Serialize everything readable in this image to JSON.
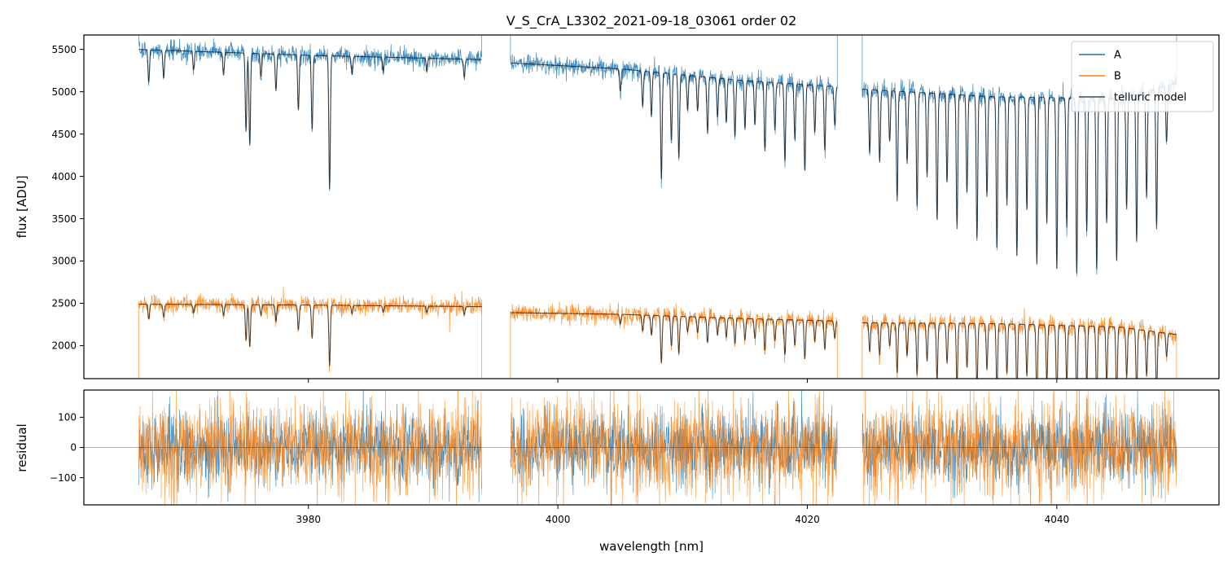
{
  "chart_data": {
    "type": "line",
    "title": "V_S_CrA_L3302_2021-09-18_03061  order 02",
    "xlabel": "wavelength [nm]",
    "xlim": [
      3962,
      4053
    ],
    "x_ticks": [
      3980,
      4000,
      4020,
      4040
    ],
    "x_tick_labels": [
      "3980",
      "4000",
      "4020",
      "4040"
    ],
    "segments": [
      {
        "x_start": 3966.4,
        "x_end": 3993.9
      },
      {
        "x_start": 3996.2,
        "x_end": 4022.4
      },
      {
        "x_start": 4024.4,
        "x_end": 4049.6
      }
    ],
    "colors": {
      "A": "#1f77b4",
      "B": "#ff7f0e",
      "model": "#000000"
    },
    "panels": [
      {
        "name": "flux",
        "ylabel": "flux [ADU]",
        "ylim": [
          1610,
          5670
        ],
        "y_ticks": [
          2000,
          2500,
          3000,
          3500,
          4000,
          4500,
          5000,
          5500
        ],
        "y_tick_labels": [
          "2000",
          "2500",
          "3000",
          "3500",
          "4000",
          "4500",
          "5000",
          "5500"
        ],
        "series": [
          {
            "name": "A",
            "continuum": [
              [
                3966.4,
                5500
              ],
              [
                3980,
                5430
              ],
              [
                3993.9,
                5380
              ],
              [
                3996.2,
                5340
              ],
              [
                4005,
                5270
              ],
              [
                4015,
                5130
              ],
              [
                4022.4,
                5060
              ],
              [
                4024.4,
                5030
              ],
              [
                4035,
                4940
              ],
              [
                4045,
                4920
              ],
              [
                4049.6,
                5100
              ]
            ],
            "noise": 55
          },
          {
            "name": "B",
            "continuum": [
              [
                3966.4,
                2490
              ],
              [
                3980,
                2480
              ],
              [
                3993.9,
                2460
              ],
              [
                3996.2,
                2390
              ],
              [
                4005,
                2370
              ],
              [
                4015,
                2320
              ],
              [
                4022.4,
                2290
              ],
              [
                4024.4,
                2270
              ],
              [
                4035,
                2260
              ],
              [
                4045,
                2220
              ],
              [
                4049.6,
                2130
              ]
            ],
            "noise": 50
          },
          {
            "name": "telluric model",
            "of": [
              "A",
              "B"
            ]
          }
        ],
        "absorption_lines": [
          {
            "x": 3967.2,
            "depth": 0.07
          },
          {
            "x": 3968.4,
            "depth": 0.06
          },
          {
            "x": 3970.8,
            "depth": 0.04
          },
          {
            "x": 3973.2,
            "depth": 0.05
          },
          {
            "x": 3975.0,
            "depth": 0.17
          },
          {
            "x": 3975.3,
            "depth": 0.2
          },
          {
            "x": 3976.2,
            "depth": 0.05
          },
          {
            "x": 3977.4,
            "depth": 0.08
          },
          {
            "x": 3979.2,
            "depth": 0.12
          },
          {
            "x": 3980.3,
            "depth": 0.16
          },
          {
            "x": 3981.7,
            "depth": 0.29
          },
          {
            "x": 3983.5,
            "depth": 0.04
          },
          {
            "x": 3986.0,
            "depth": 0.03
          },
          {
            "x": 3989.5,
            "depth": 0.03
          },
          {
            "x": 3992.5,
            "depth": 0.04
          },
          {
            "x": 4005.0,
            "depth": 0.05
          },
          {
            "x": 4006.8,
            "depth": 0.08
          },
          {
            "x": 4007.5,
            "depth": 0.1
          },
          {
            "x": 4008.3,
            "depth": 0.24
          },
          {
            "x": 4009.1,
            "depth": 0.15
          },
          {
            "x": 4009.7,
            "depth": 0.19
          },
          {
            "x": 4010.4,
            "depth": 0.08
          },
          {
            "x": 4011.2,
            "depth": 0.08
          },
          {
            "x": 4012.0,
            "depth": 0.13
          },
          {
            "x": 4012.8,
            "depth": 0.09
          },
          {
            "x": 4013.5,
            "depth": 0.1
          },
          {
            "x": 4014.2,
            "depth": 0.13
          },
          {
            "x": 4015.0,
            "depth": 0.11
          },
          {
            "x": 4015.8,
            "depth": 0.1
          },
          {
            "x": 4016.6,
            "depth": 0.16
          },
          {
            "x": 4017.4,
            "depth": 0.11
          },
          {
            "x": 4018.2,
            "depth": 0.18
          },
          {
            "x": 4019.0,
            "depth": 0.13
          },
          {
            "x": 4019.8,
            "depth": 0.2
          },
          {
            "x": 4020.6,
            "depth": 0.11
          },
          {
            "x": 4021.4,
            "depth": 0.15
          },
          {
            "x": 4022.2,
            "depth": 0.09
          },
          {
            "x": 4025.0,
            "depth": 0.15
          },
          {
            "x": 4025.8,
            "depth": 0.17
          },
          {
            "x": 4026.6,
            "depth": 0.12
          },
          {
            "x": 4027.2,
            "depth": 0.26
          },
          {
            "x": 4028.0,
            "depth": 0.17
          },
          {
            "x": 4028.8,
            "depth": 0.27
          },
          {
            "x": 4029.6,
            "depth": 0.2
          },
          {
            "x": 4030.4,
            "depth": 0.3
          },
          {
            "x": 4031.2,
            "depth": 0.21
          },
          {
            "x": 4032.0,
            "depth": 0.32
          },
          {
            "x": 4032.8,
            "depth": 0.23
          },
          {
            "x": 4033.6,
            "depth": 0.34
          },
          {
            "x": 4034.4,
            "depth": 0.24
          },
          {
            "x": 4035.2,
            "depth": 0.36
          },
          {
            "x": 4036.0,
            "depth": 0.26
          },
          {
            "x": 4036.8,
            "depth": 0.38
          },
          {
            "x": 4037.6,
            "depth": 0.27
          },
          {
            "x": 4038.4,
            "depth": 0.4
          },
          {
            "x": 4039.2,
            "depth": 0.3
          },
          {
            "x": 4040.0,
            "depth": 0.41
          },
          {
            "x": 4040.8,
            "depth": 0.31
          },
          {
            "x": 4041.6,
            "depth": 0.42
          },
          {
            "x": 4042.4,
            "depth": 0.32
          },
          {
            "x": 4043.2,
            "depth": 0.41
          },
          {
            "x": 4044.0,
            "depth": 0.3
          },
          {
            "x": 4044.8,
            "depth": 0.39
          },
          {
            "x": 4045.6,
            "depth": 0.27
          },
          {
            "x": 4046.4,
            "depth": 0.35
          },
          {
            "x": 4047.2,
            "depth": 0.25
          },
          {
            "x": 4048.0,
            "depth": 0.33
          },
          {
            "x": 4048.8,
            "depth": 0.13
          }
        ],
        "legend": {
          "position": "top-right",
          "entries": [
            "A",
            "B",
            "telluric model"
          ]
        }
      },
      {
        "name": "residual",
        "ylabel": "residual",
        "ylim": [
          -190,
          190
        ],
        "y_ticks": [
          100,
          0,
          -100
        ],
        "y_tick_labels": [
          "100",
          "0",
          "−100"
        ],
        "zero_line": true,
        "series": [
          {
            "name": "A",
            "noise": 60
          },
          {
            "name": "B",
            "noise": 80
          }
        ]
      }
    ]
  }
}
